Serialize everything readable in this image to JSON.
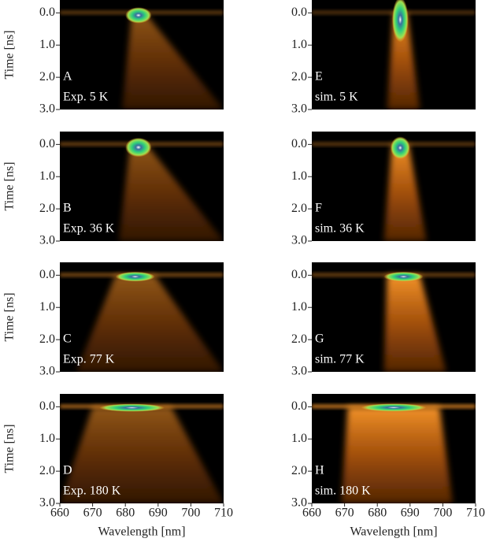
{
  "chart_data": [
    {
      "type": "heatmap",
      "panel": "A",
      "annotation": "Exp. 5 K",
      "ylabel": "Time [ns]",
      "xlim": [
        660,
        710
      ],
      "ylim": [
        -0.4,
        3.0
      ],
      "yticks": [
        {
          "value": 0,
          "label": "0.0"
        },
        {
          "value": 1,
          "label": "1.0"
        },
        {
          "value": 2,
          "label": "2.0"
        },
        {
          "value": 3,
          "label": "3.0"
        }
      ]
    },
    {
      "type": "heatmap",
      "panel": "E",
      "annotation": "sim. 5 K",
      "xlim": [
        660,
        710
      ],
      "ylim": [
        -0.4,
        3.0
      ],
      "yticks": [
        {
          "value": 0,
          "label": "0.0"
        },
        {
          "value": 1,
          "label": "1.0"
        },
        {
          "value": 2,
          "label": "2.0"
        },
        {
          "value": 3,
          "label": "3.0"
        }
      ]
    },
    {
      "type": "heatmap",
      "panel": "B",
      "annotation": "Exp. 36 K",
      "ylabel": "Time [ns]",
      "xlim": [
        660,
        710
      ],
      "ylim": [
        -0.4,
        3.0
      ],
      "yticks": [
        {
          "value": 0,
          "label": "0.0"
        },
        {
          "value": 1,
          "label": "1.0"
        },
        {
          "value": 2,
          "label": "2.0"
        },
        {
          "value": 3,
          "label": "3.0"
        }
      ]
    },
    {
      "type": "heatmap",
      "panel": "F",
      "annotation": "sim. 36 K",
      "xlim": [
        660,
        710
      ],
      "ylim": [
        -0.4,
        3.0
      ],
      "yticks": [
        {
          "value": 0,
          "label": "0.0"
        },
        {
          "value": 1,
          "label": "1.0"
        },
        {
          "value": 2,
          "label": "2.0"
        },
        {
          "value": 3,
          "label": "3.0"
        }
      ]
    },
    {
      "type": "heatmap",
      "panel": "C",
      "annotation": "Exp. 77 K",
      "ylabel": "Time [ns]",
      "xlim": [
        660,
        710
      ],
      "ylim": [
        -0.4,
        3.0
      ],
      "yticks": [
        {
          "value": 0,
          "label": "0.0"
        },
        {
          "value": 1,
          "label": "1.0"
        },
        {
          "value": 2,
          "label": "2.0"
        },
        {
          "value": 3,
          "label": "3.0"
        }
      ]
    },
    {
      "type": "heatmap",
      "panel": "G",
      "annotation": "sim. 77 K",
      "xlim": [
        660,
        710
      ],
      "ylim": [
        -0.4,
        3.0
      ],
      "yticks": [
        {
          "value": 0,
          "label": "0.0"
        },
        {
          "value": 1,
          "label": "1.0"
        },
        {
          "value": 2,
          "label": "2.0"
        },
        {
          "value": 3,
          "label": "3.0"
        }
      ]
    },
    {
      "type": "heatmap",
      "panel": "D",
      "annotation": "Exp. 180 K",
      "ylabel": "Time [ns]",
      "xlabel": "Wavelength [nm]",
      "xlim": [
        660,
        710
      ],
      "ylim": [
        -0.4,
        3.0
      ],
      "xticks": [
        660,
        670,
        680,
        690,
        700,
        710
      ],
      "yticks": [
        {
          "value": 0,
          "label": "0.0"
        },
        {
          "value": 1,
          "label": "1.0"
        },
        {
          "value": 2,
          "label": "2.0"
        },
        {
          "value": 3,
          "label": "3.0"
        }
      ]
    },
    {
      "type": "heatmap",
      "panel": "H",
      "annotation": "sim. 180 K",
      "xlabel": "Wavelength [nm]",
      "xlim": [
        660,
        710
      ],
      "ylim": [
        -0.4,
        3.0
      ],
      "xticks": [
        660,
        670,
        680,
        690,
        700,
        710
      ],
      "yticks": [
        {
          "value": 0,
          "label": "0.0"
        },
        {
          "value": 1,
          "label": "1.0"
        },
        {
          "value": 2,
          "label": "2.0"
        },
        {
          "value": 3,
          "label": "3.0"
        }
      ]
    }
  ]
}
